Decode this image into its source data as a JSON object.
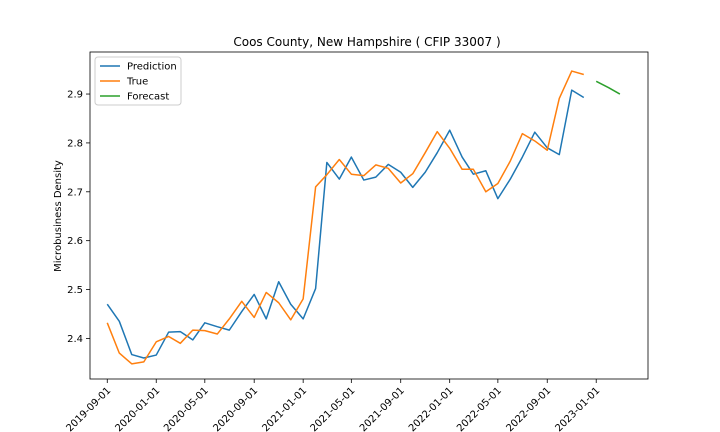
{
  "chart_data": {
    "type": "line",
    "title": "Coos County, New Hampshire ( CFIP 33007 )",
    "xlabel": "",
    "ylabel": "Microbusiness Density",
    "xlim": [
      "2019-07-20",
      "2023-05-10"
    ],
    "ylim": [
      2.317,
      2.986
    ],
    "x_ticks": [
      "2019-09-01",
      "2020-01-01",
      "2020-05-01",
      "2020-09-01",
      "2021-01-01",
      "2021-05-01",
      "2021-09-01",
      "2022-01-01",
      "2022-05-01",
      "2022-09-01",
      "2023-01-01"
    ],
    "y_ticks": [
      2.4,
      2.5,
      2.6,
      2.7,
      2.8,
      2.9
    ],
    "legend_position": "top-left",
    "series": [
      {
        "name": "Prediction",
        "color": "#1f77b4",
        "points": [
          [
            "2019-09-01",
            2.47
          ],
          [
            "2019-10-01",
            2.435
          ],
          [
            "2019-11-01",
            2.367
          ],
          [
            "2019-12-01",
            2.36
          ],
          [
            "2020-01-01",
            2.366
          ],
          [
            "2020-02-01",
            2.413
          ],
          [
            "2020-03-01",
            2.414
          ],
          [
            "2020-04-01",
            2.397
          ],
          [
            "2020-05-01",
            2.432
          ],
          [
            "2020-06-01",
            2.424
          ],
          [
            "2020-07-01",
            2.417
          ],
          [
            "2020-08-01",
            2.455
          ],
          [
            "2020-09-01",
            2.49
          ],
          [
            "2020-10-01",
            2.44
          ],
          [
            "2020-11-01",
            2.516
          ],
          [
            "2020-12-01",
            2.47
          ],
          [
            "2021-01-01",
            2.44
          ],
          [
            "2021-02-01",
            2.502
          ],
          [
            "2021-03-01",
            2.76
          ],
          [
            "2021-04-01",
            2.726
          ],
          [
            "2021-05-01",
            2.771
          ],
          [
            "2021-06-01",
            2.724
          ],
          [
            "2021-07-01",
            2.73
          ],
          [
            "2021-08-01",
            2.756
          ],
          [
            "2021-09-01",
            2.74
          ],
          [
            "2021-10-01",
            2.709
          ],
          [
            "2021-11-01",
            2.74
          ],
          [
            "2021-12-01",
            2.78
          ],
          [
            "2022-01-01",
            2.826
          ],
          [
            "2022-02-01",
            2.771
          ],
          [
            "2022-03-01",
            2.736
          ],
          [
            "2022-04-01",
            2.743
          ],
          [
            "2022-05-01",
            2.686
          ],
          [
            "2022-06-01",
            2.726
          ],
          [
            "2022-07-01",
            2.771
          ],
          [
            "2022-08-01",
            2.822
          ],
          [
            "2022-09-01",
            2.79
          ],
          [
            "2022-10-01",
            2.776
          ],
          [
            "2022-11-01",
            2.908
          ],
          [
            "2022-12-01",
            2.893
          ]
        ]
      },
      {
        "name": "True",
        "color": "#ff7f0e",
        "points": [
          [
            "2019-09-01",
            2.432
          ],
          [
            "2019-10-01",
            2.37
          ],
          [
            "2019-11-01",
            2.348
          ],
          [
            "2019-12-01",
            2.352
          ],
          [
            "2020-01-01",
            2.393
          ],
          [
            "2020-02-01",
            2.404
          ],
          [
            "2020-03-01",
            2.39
          ],
          [
            "2020-04-01",
            2.417
          ],
          [
            "2020-05-01",
            2.416
          ],
          [
            "2020-06-01",
            2.409
          ],
          [
            "2020-07-01",
            2.44
          ],
          [
            "2020-08-01",
            2.476
          ],
          [
            "2020-09-01",
            2.443
          ],
          [
            "2020-10-01",
            2.494
          ],
          [
            "2020-11-01",
            2.473
          ],
          [
            "2020-12-01",
            2.438
          ],
          [
            "2021-01-01",
            2.481
          ],
          [
            "2021-02-01",
            2.71
          ],
          [
            "2021-03-01",
            2.735
          ],
          [
            "2021-04-01",
            2.766
          ],
          [
            "2021-05-01",
            2.736
          ],
          [
            "2021-06-01",
            2.733
          ],
          [
            "2021-07-01",
            2.755
          ],
          [
            "2021-08-01",
            2.748
          ],
          [
            "2021-09-01",
            2.718
          ],
          [
            "2021-10-01",
            2.737
          ],
          [
            "2021-11-01",
            2.78
          ],
          [
            "2021-12-01",
            2.823
          ],
          [
            "2022-01-01",
            2.789
          ],
          [
            "2022-02-01",
            2.746
          ],
          [
            "2022-03-01",
            2.746
          ],
          [
            "2022-04-01",
            2.7
          ],
          [
            "2022-05-01",
            2.717
          ],
          [
            "2022-06-01",
            2.763
          ],
          [
            "2022-07-01",
            2.819
          ],
          [
            "2022-08-01",
            2.804
          ],
          [
            "2022-09-01",
            2.785
          ],
          [
            "2022-10-01",
            2.891
          ],
          [
            "2022-11-01",
            2.947
          ],
          [
            "2022-12-01",
            2.94
          ]
        ]
      },
      {
        "name": "Forecast",
        "color": "#2ca02c",
        "points": [
          [
            "2023-01-01",
            2.926
          ],
          [
            "2023-02-01",
            2.913
          ],
          [
            "2023-03-01",
            2.9
          ]
        ]
      }
    ]
  }
}
